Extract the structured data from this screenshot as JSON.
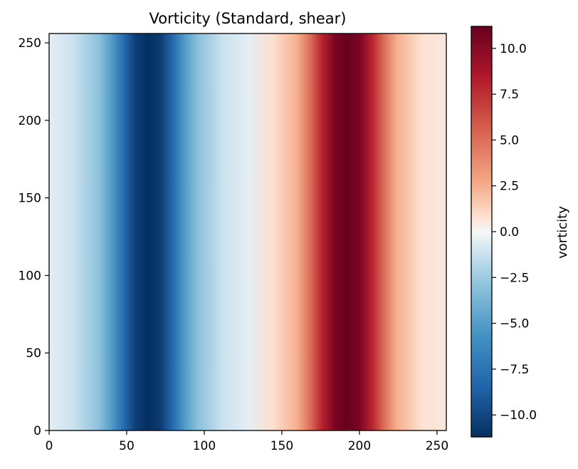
{
  "chart_data": {
    "type": "heatmap",
    "title": "Vorticity (Standard, shear)",
    "xlabel": "",
    "ylabel": "",
    "xlim": [
      0,
      256
    ],
    "ylim": [
      0,
      256
    ],
    "x_ticks": [
      0,
      50,
      100,
      150,
      200,
      250
    ],
    "y_ticks": [
      0,
      50,
      100,
      150,
      200,
      250
    ],
    "x_tick_labels": [
      "0",
      "50",
      "100",
      "150",
      "200",
      "250"
    ],
    "y_tick_labels": [
      "0",
      "50",
      "100",
      "150",
      "200",
      "250"
    ],
    "grid": false,
    "colormap": "RdBu_r",
    "colorbar": {
      "label": "vorticity",
      "range": [
        -11.2,
        11.2
      ],
      "ticks": [
        -10.0,
        -7.5,
        -5.0,
        -2.5,
        0.0,
        2.5,
        5.0,
        7.5,
        10.0
      ],
      "tick_labels": [
        "−10.0",
        "−7.5",
        "−5.0",
        "−2.5",
        "0.0",
        "2.5",
        "5.0",
        "7.5",
        "10.0"
      ]
    },
    "field": {
      "description_of_structure": "uniform along y; varies along x",
      "columns_x": [
        0,
        16,
        32,
        40,
        48,
        56,
        64,
        72,
        80,
        88,
        96,
        112,
        128,
        144,
        160,
        168,
        176,
        184,
        192,
        200,
        208,
        216,
        224,
        240,
        256
      ],
      "values": [
        -0.5,
        -1.2,
        -3.0,
        -5.0,
        -8.0,
        -10.5,
        -11.2,
        -10.5,
        -8.0,
        -5.0,
        -3.0,
        -1.2,
        -0.5,
        0.8,
        2.5,
        5.0,
        8.0,
        10.5,
        11.2,
        10.5,
        8.0,
        5.0,
        2.5,
        0.8,
        0.5
      ]
    }
  },
  "colors": {
    "cmap_stops": [
      [
        -11.2,
        "#053061"
      ],
      [
        -8.4,
        "#2166ac"
      ],
      [
        -5.6,
        "#4393c3"
      ],
      [
        -2.8,
        "#92c5de"
      ],
      [
        -1.0,
        "#d1e5f0"
      ],
      [
        0.0,
        "#f7f7f7"
      ],
      [
        1.0,
        "#fddbc7"
      ],
      [
        2.8,
        "#f4a582"
      ],
      [
        5.6,
        "#d6604d"
      ],
      [
        8.4,
        "#b2182b"
      ],
      [
        11.2,
        "#67001f"
      ]
    ]
  }
}
